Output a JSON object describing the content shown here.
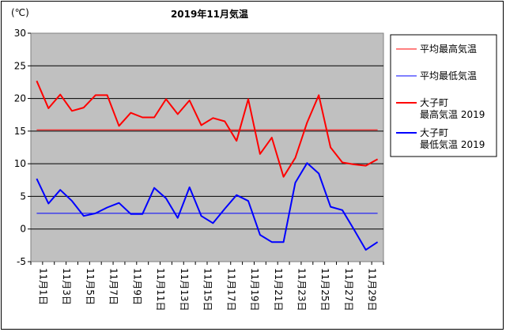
{
  "chart_data": {
    "type": "line",
    "title": "2019年11月気温",
    "unit_label": "(℃)",
    "ylim": [
      -5,
      30
    ],
    "y_ticks": [
      30,
      25,
      20,
      15,
      10,
      5,
      0,
      -5
    ],
    "categories": [
      "11月1日",
      "11月2日",
      "11月3日",
      "11月4日",
      "11月5日",
      "11月6日",
      "11月7日",
      "11月8日",
      "11月9日",
      "11月10日",
      "11月11日",
      "11月12日",
      "11月13日",
      "11月14日",
      "11月15日",
      "11月16日",
      "11月17日",
      "11月18日",
      "11月19日",
      "11月20日",
      "11月21日",
      "11月22日",
      "11月23日",
      "11月24日",
      "11月25日",
      "11月26日",
      "11月27日",
      "11月28日",
      "11月29日",
      "11月30日"
    ],
    "x_tick_labels": [
      "11月1日",
      "11月3日",
      "11月5日",
      "11月7日",
      "11月9日",
      "11月11日",
      "11月13日",
      "11月15日",
      "11月17日",
      "11月19日",
      "11月21日",
      "11月23日",
      "11月25日",
      "11月27日",
      "11月29日"
    ],
    "grid": true,
    "legend_position": "right",
    "series": [
      {
        "name": "平均最高気温",
        "color": "#ff0000",
        "width": 1,
        "values": [
          15.2,
          15.2,
          15.2,
          15.2,
          15.2,
          15.2,
          15.2,
          15.2,
          15.2,
          15.2,
          15.2,
          15.2,
          15.2,
          15.2,
          15.2,
          15.2,
          15.2,
          15.2,
          15.2,
          15.2,
          15.2,
          15.2,
          15.2,
          15.2,
          15.2,
          15.2,
          15.2,
          15.2,
          15.2,
          15.2
        ]
      },
      {
        "name": "平均最低気温",
        "color": "#0000ff",
        "width": 1,
        "values": [
          2.4,
          2.4,
          2.4,
          2.4,
          2.4,
          2.4,
          2.4,
          2.4,
          2.4,
          2.4,
          2.4,
          2.4,
          2.4,
          2.4,
          2.4,
          2.4,
          2.4,
          2.4,
          2.4,
          2.4,
          2.4,
          2.4,
          2.4,
          2.4,
          2.4,
          2.4,
          2.4,
          2.4,
          2.4,
          2.4
        ]
      },
      {
        "name": "大子町\n最高気温 2019",
        "color": "#ff0000",
        "width": 2,
        "values": [
          22.7,
          18.5,
          20.6,
          18.1,
          18.6,
          20.5,
          20.5,
          15.8,
          17.8,
          17.1,
          17.1,
          19.9,
          17.6,
          19.7,
          15.9,
          17.0,
          16.5,
          13.5,
          19.9,
          11.5,
          14.0,
          8.0,
          10.9,
          16.3,
          20.5,
          12.5,
          10.2,
          9.9,
          9.7,
          10.7
        ]
      },
      {
        "name": "大子町\n最低気温 2019",
        "color": "#0000ff",
        "width": 2,
        "values": [
          7.7,
          3.9,
          6.0,
          4.3,
          2.0,
          2.4,
          3.3,
          4.0,
          2.3,
          2.3,
          6.3,
          4.7,
          1.7,
          6.4,
          2.0,
          0.9,
          3.1,
          5.2,
          4.3,
          -0.9,
          -2.0,
          -2.0,
          7.1,
          10.1,
          8.5,
          3.4,
          2.9,
          -0.1,
          -3.2,
          -2.0
        ]
      }
    ]
  }
}
